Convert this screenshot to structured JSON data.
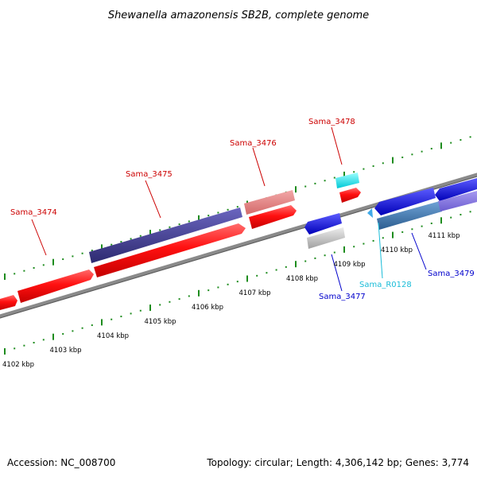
{
  "title": "Shewanella amazonensis SB2B, complete genome",
  "footer": {
    "accession": "Accession: NC_008700",
    "summary": "Topology: circular; Length: 4,306,142 bp; Genes: 3,774"
  },
  "colors": {
    "forward_red": "#ff1a1a",
    "red_pale": "#e07a7a",
    "navy": "#3d3a8a",
    "blue": "#1a1ae6",
    "cyan": "#19e6e6",
    "steel": "#3f77b0",
    "gray": "#bdbdbd",
    "tick_green": "#1e8c1e",
    "label_red": "#cc0000",
    "label_blue": "#0000cc",
    "label_cyan": "#19bcd8"
  },
  "scale": {
    "ticks": [
      "4102 kbp",
      "4103 kbp",
      "4104 kbp",
      "4105 kbp",
      "4106 kbp",
      "4107 kbp",
      "4108 kbp",
      "4109 kbp",
      "4110 kbp",
      "4111 kbp"
    ]
  },
  "genes": [
    {
      "name": "Sama_3474",
      "strand": "+",
      "label_color": "label_red"
    },
    {
      "name": "Sama_3475",
      "strand": "+",
      "label_color": "label_red"
    },
    {
      "name": "Sama_3476",
      "strand": "+",
      "label_color": "label_red"
    },
    {
      "name": "Sama_3478",
      "strand": "+",
      "label_color": "label_red"
    },
    {
      "name": "Sama_3477",
      "strand": "-",
      "label_color": "label_blue"
    },
    {
      "name": "Sama_R0128",
      "strand": "-",
      "label_color": "label_cyan"
    },
    {
      "name": "Sama_3479",
      "strand": "-",
      "label_color": "label_blue"
    }
  ]
}
